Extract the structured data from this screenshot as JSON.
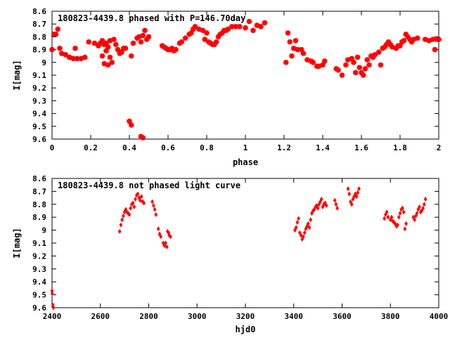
{
  "chart_data": [
    {
      "type": "scatter",
      "title": "180823-4439.8 phased with P=146.70day",
      "xlabel": "phase",
      "ylabel": "I[mag]",
      "xlim": [
        0,
        2
      ],
      "ylim": [
        9.6,
        8.6
      ],
      "y_inverted": true,
      "grid": false,
      "marker_color": "#ff0000",
      "marker": "cross",
      "xticks": [
        "0",
        "0.2",
        "0.4",
        "0.6",
        "0.8",
        "1",
        "1.2",
        "1.4",
        "1.6",
        "1.8",
        "2"
      ],
      "yticks": [
        "8.6",
        "8.7",
        "8.8",
        "8.9",
        "9",
        "9.1",
        "9.2",
        "9.3",
        "9.4",
        "9.5",
        "9.6"
      ],
      "series": [
        {
          "points": [
            [
              0.0,
              8.9
            ],
            [
              0.01,
              8.78
            ],
            [
              0.02,
              8.78
            ],
            [
              0.03,
              8.74
            ],
            [
              0.04,
              8.89
            ],
            [
              0.05,
              8.93
            ],
            [
              0.07,
              8.94
            ],
            [
              0.09,
              8.96
            ],
            [
              0.11,
              8.97
            ],
            [
              0.13,
              8.97
            ],
            [
              0.15,
              8.97
            ],
            [
              0.17,
              8.96
            ],
            [
              0.12,
              8.89
            ],
            [
              0.19,
              8.84
            ],
            [
              0.22,
              8.85
            ],
            [
              0.24,
              8.87
            ],
            [
              0.25,
              8.85
            ],
            [
              0.26,
              8.83
            ],
            [
              0.27,
              8.86
            ],
            [
              0.28,
              8.85
            ],
            [
              0.28,
              8.91
            ],
            [
              0.29,
              8.88
            ],
            [
              0.26,
              8.95
            ],
            [
              0.27,
              9.01
            ],
            [
              0.29,
              9.02
            ],
            [
              0.3,
              8.96
            ],
            [
              0.31,
              9.0
            ],
            [
              0.3,
              8.83
            ],
            [
              0.32,
              8.82
            ],
            [
              0.33,
              8.86
            ],
            [
              0.34,
              8.9
            ],
            [
              0.35,
              8.93
            ],
            [
              0.36,
              8.92
            ],
            [
              0.37,
              8.89
            ],
            [
              0.38,
              8.89
            ],
            [
              0.4,
              9.46
            ],
            [
              0.41,
              9.49
            ],
            [
              0.46,
              9.58
            ],
            [
              0.47,
              9.59
            ],
            [
              0.41,
              8.95
            ],
            [
              0.42,
              8.85
            ],
            [
              0.44,
              8.81
            ],
            [
              0.45,
              8.8
            ],
            [
              0.46,
              8.84
            ],
            [
              0.47,
              8.79
            ],
            [
              0.48,
              8.75
            ],
            [
              0.49,
              8.82
            ],
            [
              0.5,
              8.8
            ],
            [
              0.57,
              8.87
            ],
            [
              0.58,
              8.88
            ],
            [
              0.59,
              8.89
            ],
            [
              0.6,
              8.9
            ],
            [
              0.61,
              8.9
            ],
            [
              0.62,
              8.89
            ],
            [
              0.63,
              8.91
            ],
            [
              0.64,
              8.9
            ],
            [
              0.66,
              8.85
            ],
            [
              0.67,
              8.84
            ],
            [
              0.69,
              8.81
            ],
            [
              0.71,
              8.78
            ],
            [
              0.72,
              8.77
            ],
            [
              0.73,
              8.74
            ],
            [
              0.74,
              8.72
            ],
            [
              0.76,
              8.74
            ],
            [
              0.78,
              8.75
            ],
            [
              0.79,
              8.82
            ],
            [
              0.8,
              8.77
            ],
            [
              0.81,
              8.84
            ],
            [
              0.82,
              8.85
            ],
            [
              0.83,
              8.86
            ],
            [
              0.84,
              8.86
            ],
            [
              0.85,
              8.84
            ],
            [
              0.86,
              8.8
            ],
            [
              0.87,
              8.78
            ],
            [
              0.88,
              8.77
            ],
            [
              0.89,
              8.75
            ],
            [
              0.9,
              8.75
            ],
            [
              0.91,
              8.74
            ],
            [
              0.93,
              8.72
            ],
            [
              0.95,
              8.72
            ],
            [
              0.97,
              8.72
            ],
            [
              1.0,
              8.73
            ],
            [
              1.02,
              8.68
            ],
            [
              1.04,
              8.75
            ],
            [
              1.06,
              8.71
            ],
            [
              1.08,
              8.72
            ],
            [
              1.1,
              8.69
            ],
            [
              1.21,
              9.0
            ],
            [
              1.22,
              8.77
            ],
            [
              1.23,
              8.84
            ],
            [
              1.24,
              8.95
            ],
            [
              1.25,
              8.89
            ],
            [
              1.26,
              8.83
            ],
            [
              1.27,
              8.9
            ],
            [
              1.29,
              8.9
            ],
            [
              1.3,
              8.93
            ],
            [
              1.32,
              8.98
            ],
            [
              1.34,
              8.99
            ],
            [
              1.35,
              9.0
            ],
            [
              1.37,
              9.03
            ],
            [
              1.38,
              9.03
            ],
            [
              1.4,
              9.02
            ],
            [
              1.41,
              8.99
            ],
            [
              1.47,
              9.05
            ],
            [
              1.48,
              9.06
            ],
            [
              1.5,
              9.1
            ],
            [
              1.52,
              9.02
            ],
            [
              1.53,
              8.98
            ],
            [
              1.55,
              8.97
            ],
            [
              1.56,
              9.0
            ],
            [
              1.57,
              9.08
            ],
            [
              1.58,
              8.96
            ],
            [
              1.59,
              9.04
            ],
            [
              1.6,
              9.08
            ],
            [
              1.61,
              9.1
            ],
            [
              1.62,
              9.05
            ],
            [
              1.63,
              8.98
            ],
            [
              1.64,
              9.02
            ],
            [
              1.65,
              8.95
            ],
            [
              1.66,
              8.96
            ],
            [
              1.67,
              8.94
            ],
            [
              1.69,
              8.92
            ],
            [
              1.7,
              9.02
            ],
            [
              1.71,
              8.89
            ],
            [
              1.72,
              8.88
            ],
            [
              1.73,
              8.86
            ],
            [
              1.74,
              8.84
            ],
            [
              1.75,
              8.86
            ],
            [
              1.76,
              8.88
            ],
            [
              1.78,
              8.89
            ],
            [
              1.79,
              8.87
            ],
            [
              1.8,
              8.87
            ],
            [
              1.81,
              8.84
            ],
            [
              1.82,
              8.83
            ],
            [
              1.83,
              8.78
            ],
            [
              1.84,
              8.8
            ],
            [
              1.85,
              8.82
            ],
            [
              1.86,
              8.84
            ],
            [
              1.87,
              8.82
            ],
            [
              1.89,
              8.81
            ],
            [
              1.93,
              8.82
            ],
            [
              1.95,
              8.83
            ],
            [
              1.97,
              8.82
            ],
            [
              1.98,
              8.9
            ],
            [
              1.99,
              8.82
            ],
            [
              2.0,
              8.82
            ]
          ]
        }
      ]
    },
    {
      "type": "scatter",
      "title": "180823-4439.8 not phased light curve",
      "xlabel": "hjd0",
      "ylabel": "I[mag]",
      "xlim": [
        2400,
        4000
      ],
      "ylim": [
        9.6,
        8.6
      ],
      "y_inverted": true,
      "grid": false,
      "marker_color": "#ff0000",
      "marker": "diamond",
      "xticks": [
        "2400",
        "2600",
        "2800",
        "3000",
        "3200",
        "3400",
        "3600",
        "3800",
        "4000"
      ],
      "yticks": [
        "8.6",
        "8.7",
        "8.8",
        "8.9",
        "9",
        "9.1",
        "9.2",
        "9.3",
        "9.4",
        "9.5",
        "9.6"
      ],
      "series": [
        {
          "points": [
            [
              2400,
              9.47
            ],
            [
              2401,
              9.49
            ],
            [
              2404,
              9.58
            ],
            [
              2406,
              9.6
            ],
            [
              2680,
              9.01
            ],
            [
              2685,
              8.96
            ],
            [
              2690,
              8.92
            ],
            [
              2695,
              8.89
            ],
            [
              2700,
              8.86
            ],
            [
              2705,
              8.84
            ],
            [
              2710,
              8.86
            ],
            [
              2715,
              8.87
            ],
            [
              2720,
              8.88
            ],
            [
              2725,
              8.83
            ],
            [
              2730,
              8.8
            ],
            [
              2735,
              8.79
            ],
            [
              2740,
              8.82
            ],
            [
              2745,
              8.76
            ],
            [
              2750,
              8.73
            ],
            [
              2755,
              8.72
            ],
            [
              2760,
              8.75
            ],
            [
              2765,
              8.77
            ],
            [
              2770,
              8.74
            ],
            [
              2775,
              8.78
            ],
            [
              2780,
              8.79
            ],
            [
              2815,
              8.78
            ],
            [
              2820,
              8.81
            ],
            [
              2825,
              8.84
            ],
            [
              2830,
              8.88
            ],
            [
              2840,
              8.99
            ],
            [
              2845,
              9.03
            ],
            [
              2850,
              9.05
            ],
            [
              2860,
              9.1
            ],
            [
              2865,
              9.12
            ],
            [
              2870,
              9.1
            ],
            [
              2875,
              9.13
            ],
            [
              2878,
              9.01
            ],
            [
              2882,
              9.02
            ],
            [
              2885,
              9.04
            ],
            [
              2890,
              9.05
            ],
            [
              3405,
              9.0
            ],
            [
              3410,
              8.98
            ],
            [
              3415,
              8.94
            ],
            [
              3420,
              8.91
            ],
            [
              3425,
              9.02
            ],
            [
              3430,
              9.04
            ],
            [
              3435,
              9.07
            ],
            [
              3440,
              9.05
            ],
            [
              3445,
              9.02
            ],
            [
              3450,
              8.99
            ],
            [
              3455,
              8.97
            ],
            [
              3460,
              8.95
            ],
            [
              3465,
              8.98
            ],
            [
              3470,
              8.92
            ],
            [
              3475,
              8.87
            ],
            [
              3480,
              8.85
            ],
            [
              3485,
              8.84
            ],
            [
              3490,
              8.82
            ],
            [
              3495,
              8.81
            ],
            [
              3500,
              8.83
            ],
            [
              3505,
              8.8
            ],
            [
              3510,
              8.78
            ],
            [
              3515,
              8.76
            ],
            [
              3520,
              8.82
            ],
            [
              3525,
              8.8
            ],
            [
              3530,
              8.79
            ],
            [
              3535,
              8.81
            ],
            [
              3570,
              8.77
            ],
            [
              3575,
              8.8
            ],
            [
              3580,
              8.83
            ],
            [
              3625,
              8.68
            ],
            [
              3630,
              8.72
            ],
            [
              3635,
              8.78
            ],
            [
              3640,
              8.8
            ],
            [
              3645,
              8.76
            ],
            [
              3650,
              8.74
            ],
            [
              3655,
              8.72
            ],
            [
              3660,
              8.74
            ],
            [
              3665,
              8.71
            ],
            [
              3670,
              8.68
            ],
            [
              3775,
              8.91
            ],
            [
              3780,
              8.88
            ],
            [
              3785,
              8.86
            ],
            [
              3790,
              8.9
            ],
            [
              3800,
              8.92
            ],
            [
              3805,
              8.9
            ],
            [
              3810,
              8.93
            ],
            [
              3815,
              8.94
            ],
            [
              3820,
              8.95
            ],
            [
              3825,
              8.97
            ],
            [
              3830,
              8.96
            ],
            [
              3835,
              8.9
            ],
            [
              3840,
              8.87
            ],
            [
              3845,
              8.84
            ],
            [
              3850,
              8.83
            ],
            [
              3855,
              8.86
            ],
            [
              3860,
              8.99
            ],
            [
              3865,
              8.95
            ],
            [
              3895,
              8.9
            ],
            [
              3900,
              8.92
            ],
            [
              3905,
              8.89
            ],
            [
              3910,
              8.87
            ],
            [
              3915,
              8.84
            ],
            [
              3920,
              8.82
            ],
            [
              3925,
              8.86
            ],
            [
              3930,
              8.85
            ],
            [
              3935,
              8.83
            ],
            [
              3940,
              8.8
            ],
            [
              3945,
              8.76
            ]
          ]
        }
      ]
    }
  ]
}
